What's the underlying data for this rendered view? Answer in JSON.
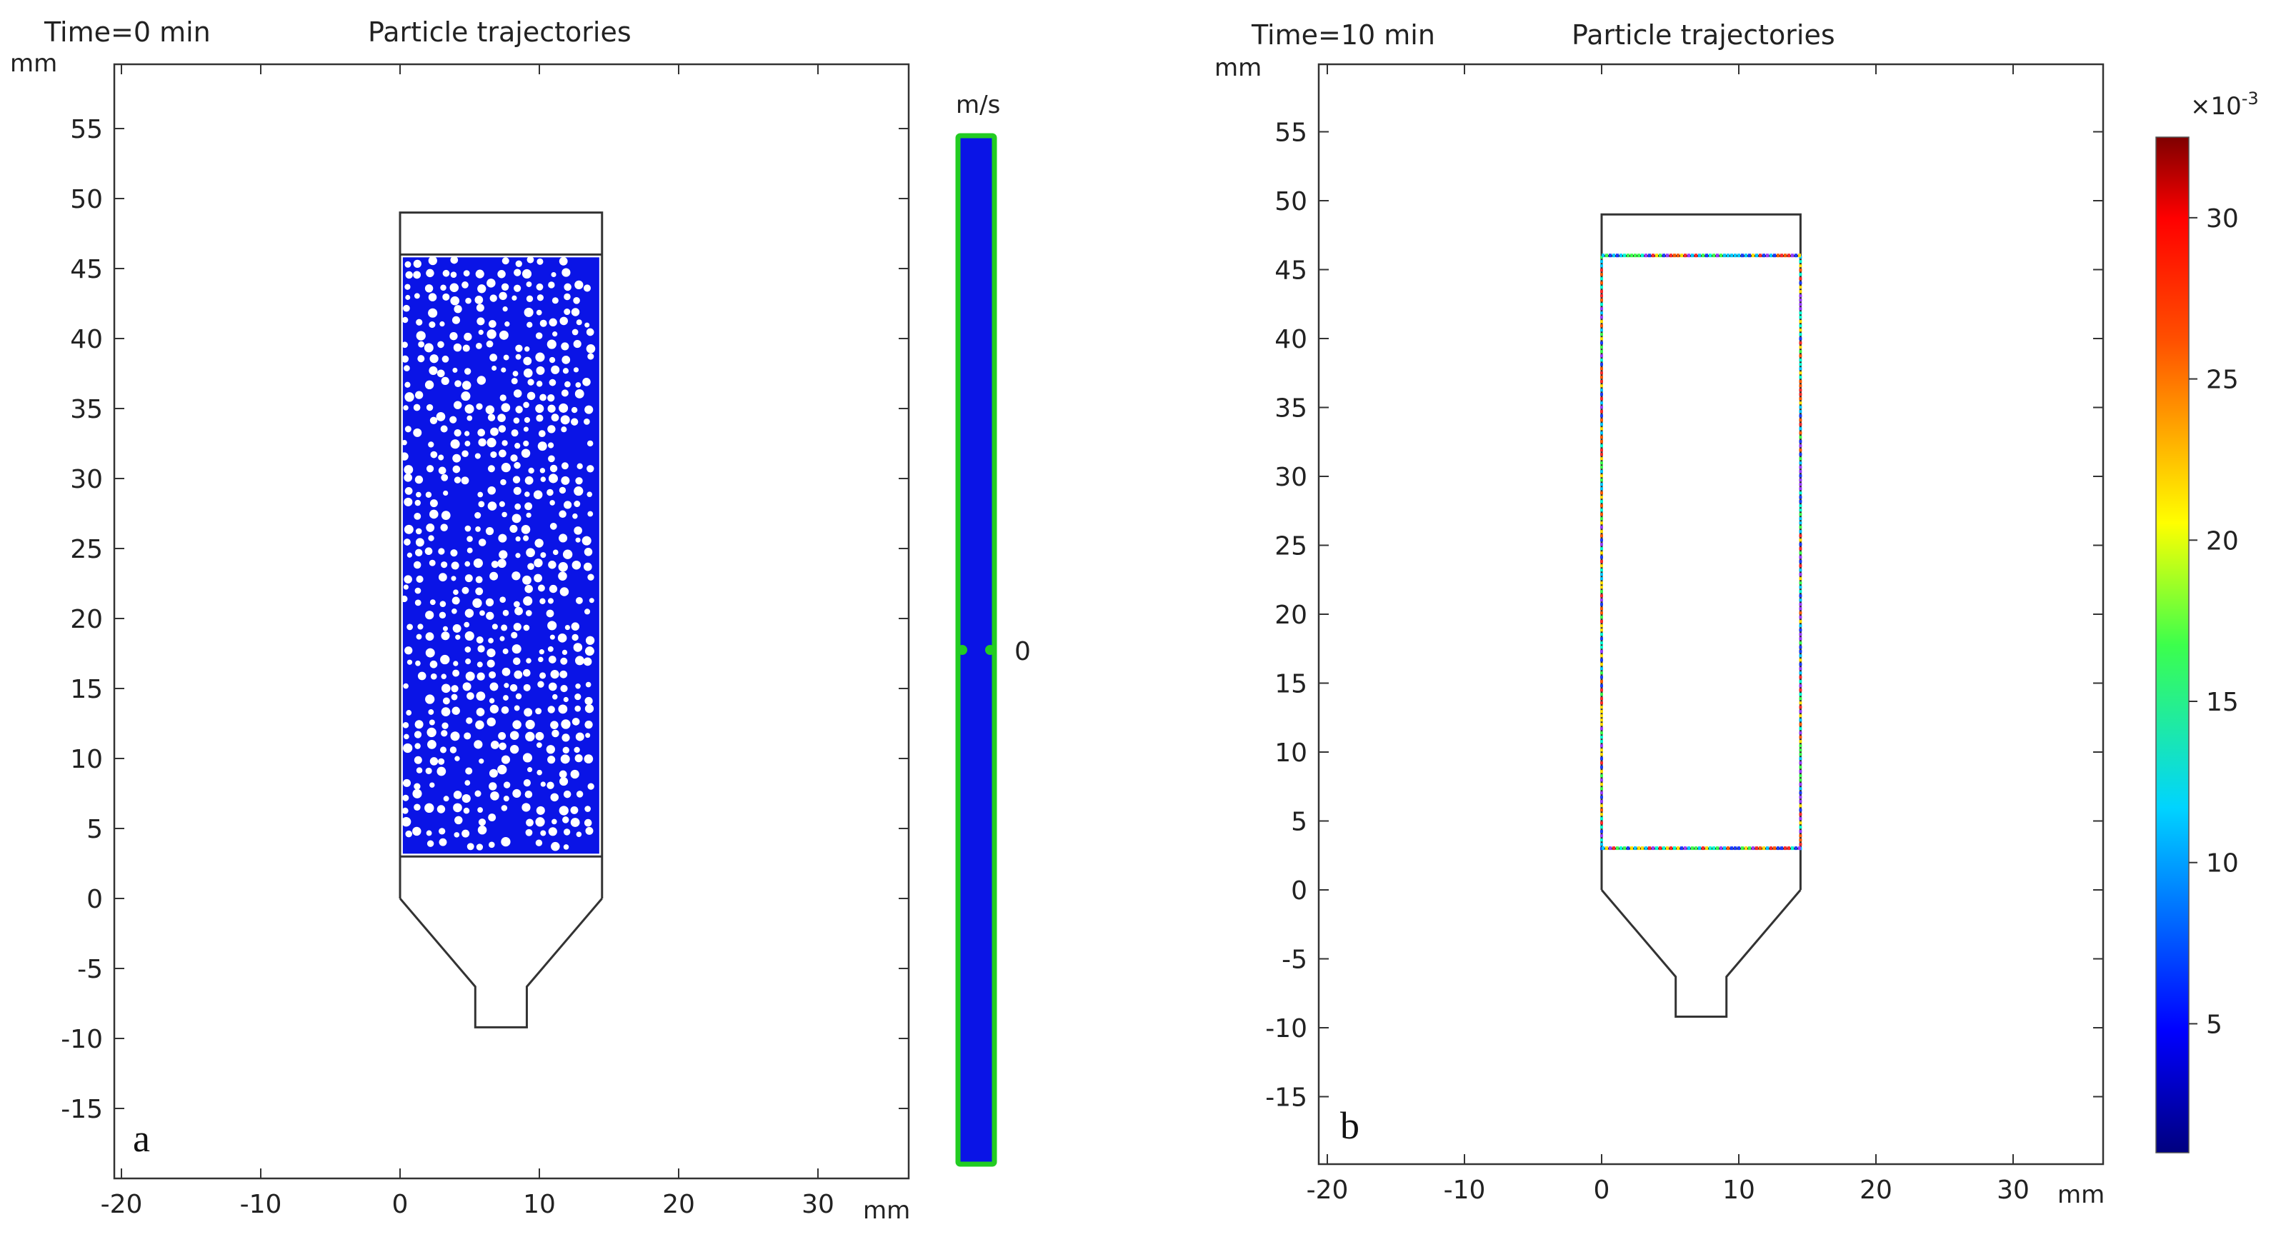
{
  "colors": {
    "particles": "#0a14e6",
    "geometry": "#333333",
    "green_outline": "#22cc22",
    "background": "#ffffff"
  },
  "chart_data": [
    {
      "panel": "a",
      "type": "scatter",
      "time_label": "Time=0 min",
      "title": "Particle trajectories",
      "x_unit": "mm",
      "y_unit": "mm",
      "xlim": [
        -21,
        35
      ],
      "ylim": [
        -19,
        59
      ],
      "x_ticks": [
        -20,
        -10,
        0,
        10,
        20,
        30
      ],
      "y_ticks": [
        -15,
        -10,
        -5,
        0,
        5,
        10,
        15,
        20,
        25,
        30,
        35,
        40,
        45,
        50,
        55
      ],
      "geometry": {
        "column": [
          [
            0,
            0
          ],
          [
            0,
            49
          ],
          [
            14.5,
            49
          ],
          [
            14.5,
            0
          ]
        ],
        "section_lines_y": [
          3,
          46
        ],
        "funnel": [
          [
            0,
            0
          ],
          [
            5.4,
            -6.3
          ],
          [
            5.4,
            -9.2
          ],
          [
            9.1,
            -9.2
          ],
          [
            9.1,
            -6.3
          ],
          [
            14.5,
            0
          ]
        ]
      },
      "packed_bed": {
        "x_range": [
          0.2,
          14.3
        ],
        "y_range": [
          3.2,
          45.8
        ],
        "particle_color": "#0a14e6"
      },
      "colorbar": {
        "unit": "m/s",
        "labels": [
          "0"
        ],
        "fill": "#0a14e6",
        "outline": "#22cc22"
      },
      "panel_label": "a"
    },
    {
      "panel": "b",
      "type": "scatter",
      "time_label": "Time=10 min",
      "title": "Particle trajectories",
      "x_unit": "mm",
      "y_unit": "mm",
      "xlim": [
        -21,
        35
      ],
      "ylim": [
        -19,
        59
      ],
      "x_ticks": [
        -20,
        -10,
        0,
        10,
        20,
        30
      ],
      "y_ticks": [
        -15,
        -10,
        -5,
        0,
        5,
        10,
        15,
        20,
        25,
        30,
        35,
        40,
        45,
        50,
        55
      ],
      "geometry": {
        "column": [
          [
            0,
            0
          ],
          [
            0,
            49
          ],
          [
            14.5,
            49
          ],
          [
            14.5,
            0
          ]
        ],
        "section_lines_y": [
          3,
          46
        ],
        "funnel": [
          [
            0,
            0
          ],
          [
            5.4,
            -6.3
          ],
          [
            5.4,
            -9.2
          ],
          [
            9.1,
            -9.2
          ],
          [
            9.1,
            -6.3
          ],
          [
            14.5,
            0
          ]
        ]
      },
      "boundary_particles": {
        "walls_x": [
          0,
          14.5
        ],
        "lines_y": [
          3,
          46
        ]
      },
      "colorbar": {
        "multiplier_base": "×10",
        "multiplier_exp": "-3",
        "min": 1,
        "max": 32.5,
        "labels": [
          "30",
          "25",
          "20",
          "15",
          "10",
          "5"
        ],
        "label_values": [
          30,
          25,
          20,
          15,
          10,
          5
        ],
        "colormap": "rainbow"
      },
      "panel_label": "b"
    }
  ]
}
